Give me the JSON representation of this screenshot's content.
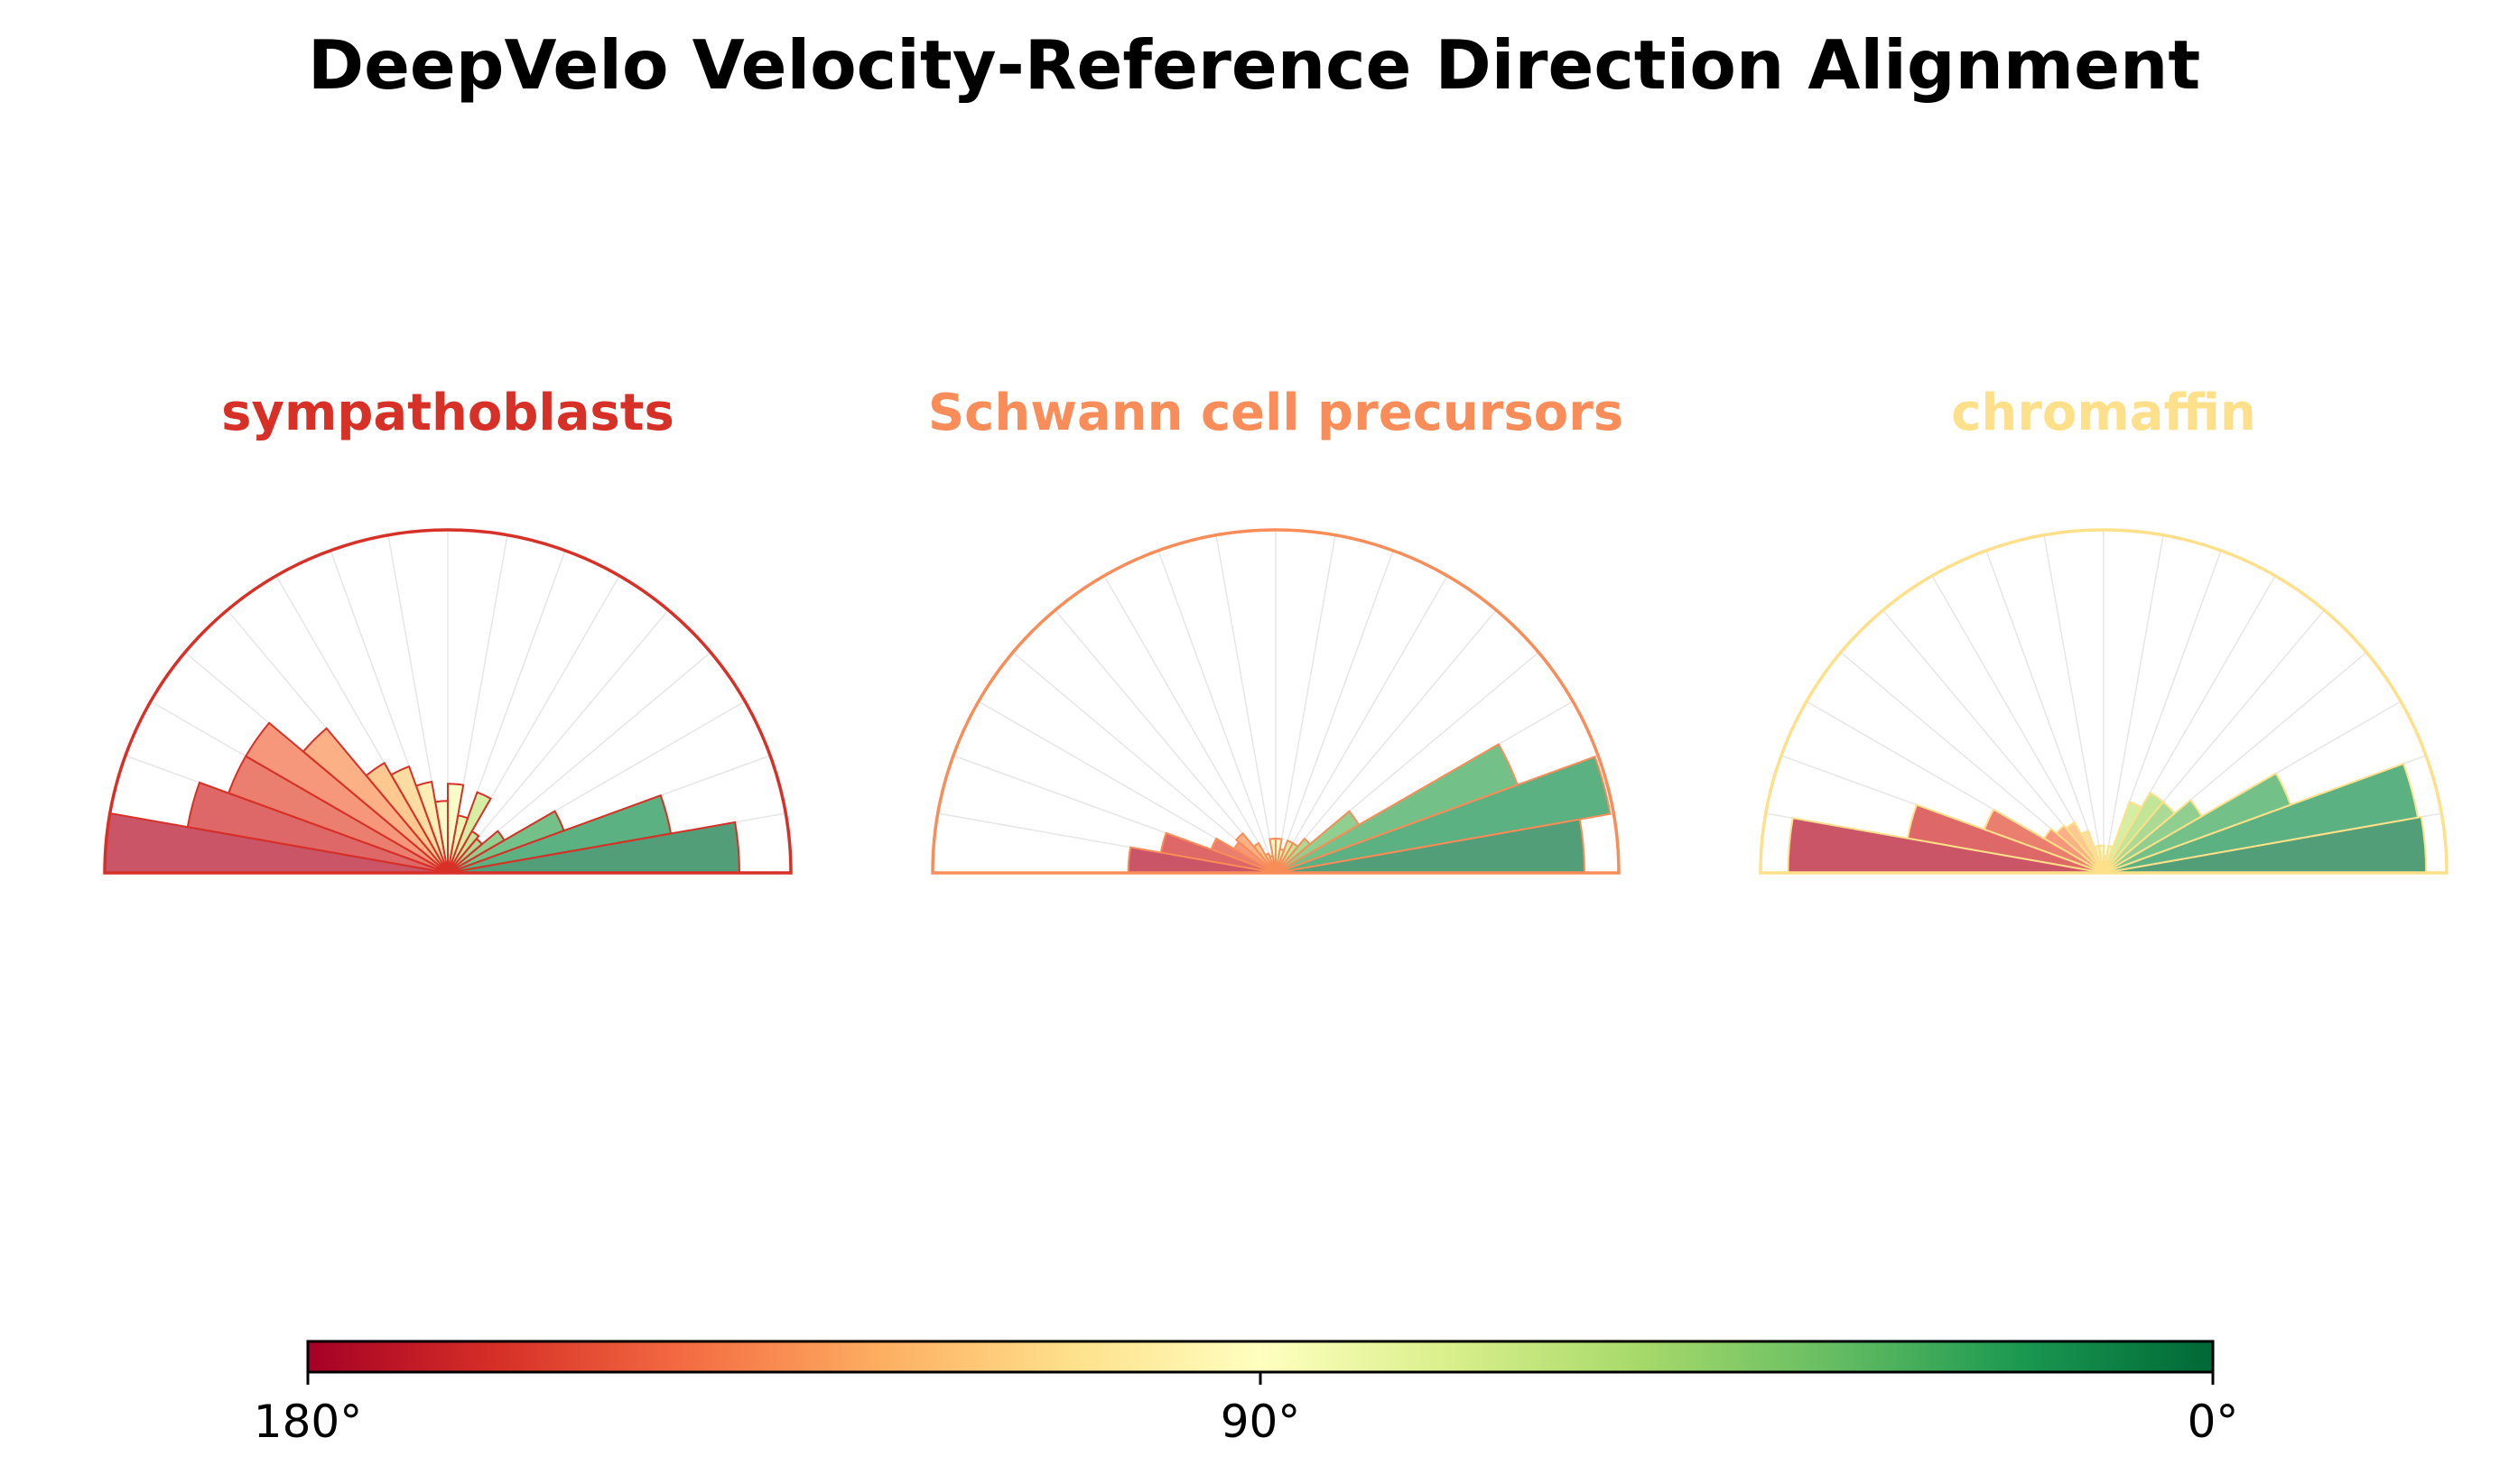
{
  "title": "DeepVelo Velocity-Reference Direction Alignment",
  "chart_data": [
    {
      "type": "polar-bar",
      "title": "sympathoblasts",
      "title_color": "#d73027",
      "theta_range_deg": [
        0,
        180
      ],
      "bin_width_deg": 10,
      "bins": [
        {
          "angle": 5,
          "value": 0.85
        },
        {
          "angle": 15,
          "value": 0.66
        },
        {
          "angle": 25,
          "value": 0.36
        },
        {
          "angle": 35,
          "value": 0.19
        },
        {
          "angle": 45,
          "value": 0.13
        },
        {
          "angle": 55,
          "value": 0.14
        },
        {
          "angle": 65,
          "value": 0.25
        },
        {
          "angle": 75,
          "value": 0.17
        },
        {
          "angle": 85,
          "value": 0.26
        },
        {
          "angle": 95,
          "value": 0.21
        },
        {
          "angle": 105,
          "value": 0.27
        },
        {
          "angle": 115,
          "value": 0.33
        },
        {
          "angle": 125,
          "value": 0.37
        },
        {
          "angle": 135,
          "value": 0.55
        },
        {
          "angle": 145,
          "value": 0.68
        },
        {
          "angle": 155,
          "value": 0.68
        },
        {
          "angle": 165,
          "value": 0.77
        },
        {
          "angle": 175,
          "value": 1.0
        }
      ]
    },
    {
      "type": "polar-bar",
      "title": "Schwann cell precursors",
      "title_color": "#f88d59",
      "theta_range_deg": [
        0,
        180
      ],
      "bin_width_deg": 10,
      "bins": [
        {
          "angle": 5,
          "value": 0.9
        },
        {
          "angle": 15,
          "value": 0.99
        },
        {
          "angle": 25,
          "value": 0.75
        },
        {
          "angle": 35,
          "value": 0.28
        },
        {
          "angle": 45,
          "value": 0.13
        },
        {
          "angle": 55,
          "value": 0.1
        },
        {
          "angle": 65,
          "value": 0.1
        },
        {
          "angle": 75,
          "value": 0.07
        },
        {
          "angle": 85,
          "value": 0.1
        },
        {
          "angle": 95,
          "value": 0.1
        },
        {
          "angle": 105,
          "value": 0.05
        },
        {
          "angle": 115,
          "value": 0.06
        },
        {
          "angle": 125,
          "value": 0.1
        },
        {
          "angle": 135,
          "value": 0.15
        },
        {
          "angle": 145,
          "value": 0.14
        },
        {
          "angle": 155,
          "value": 0.2
        },
        {
          "angle": 165,
          "value": 0.34
        },
        {
          "angle": 175,
          "value": 0.43
        }
      ]
    },
    {
      "type": "polar-bar",
      "title": "chromaffin",
      "title_color": "#fee08b",
      "theta_range_deg": [
        0,
        180
      ],
      "bin_width_deg": 10,
      "bins": [
        {
          "angle": 5,
          "value": 0.94
        },
        {
          "angle": 15,
          "value": 0.93
        },
        {
          "angle": 25,
          "value": 0.58
        },
        {
          "angle": 35,
          "value": 0.33
        },
        {
          "angle": 45,
          "value": 0.27
        },
        {
          "angle": 55,
          "value": 0.27
        },
        {
          "angle": 65,
          "value": 0.22
        },
        {
          "angle": 75,
          "value": 0.08
        },
        {
          "angle": 85,
          "value": 0.05
        },
        {
          "angle": 95,
          "value": 0.08
        },
        {
          "angle": 105,
          "value": 0.08
        },
        {
          "angle": 115,
          "value": 0.13
        },
        {
          "angle": 125,
          "value": 0.17
        },
        {
          "angle": 135,
          "value": 0.18
        },
        {
          "angle": 145,
          "value": 0.2
        },
        {
          "angle": 155,
          "value": 0.37
        },
        {
          "angle": 165,
          "value": 0.58
        },
        {
          "angle": 175,
          "value": 0.92
        }
      ]
    }
  ],
  "colorbar": {
    "colormap": "RdYlGn",
    "range_deg": [
      180,
      0
    ],
    "stops": [
      "#a50026",
      "#d73027",
      "#f46d43",
      "#fdae61",
      "#fee08b",
      "#ffffbf",
      "#d9ef8b",
      "#a6d96a",
      "#66bd63",
      "#1a9850",
      "#006837"
    ],
    "tick_values": [
      180,
      90,
      0
    ],
    "tick_labels": [
      "180°",
      "90°",
      "0°"
    ]
  }
}
